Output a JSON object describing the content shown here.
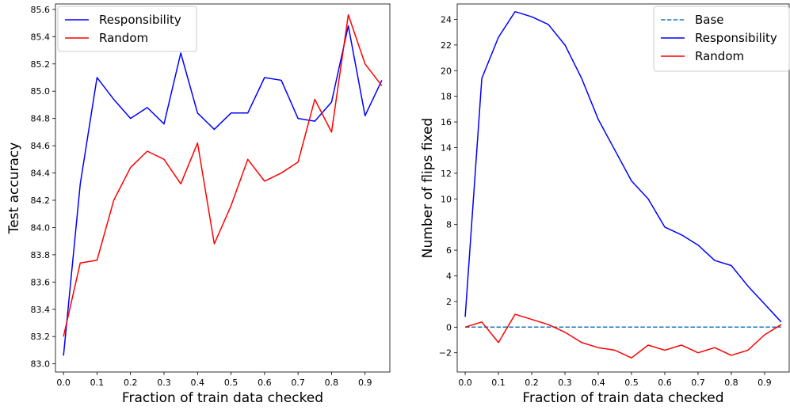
{
  "chart_data": [
    {
      "type": "line",
      "title": "",
      "xlabel": "Fraction of train data checked",
      "ylabel": "Test accuracy",
      "xlim": [
        -0.024,
        0.974
      ],
      "ylim": [
        82.94,
        85.64
      ],
      "xticks": [
        0.0,
        0.1,
        0.2,
        0.3,
        0.4,
        0.5,
        0.6,
        0.7,
        0.8,
        0.9
      ],
      "xtick_labels": [
        "0.0",
        "0.1",
        "0.2",
        "0.3",
        "0.4",
        "0.5",
        "0.6",
        "0.7",
        "0.8",
        "0.9"
      ],
      "yticks": [
        83.0,
        83.2,
        83.4,
        83.6,
        83.8,
        84.0,
        84.2,
        84.4,
        84.6,
        84.8,
        85.0,
        85.2,
        85.4,
        85.6
      ],
      "ytick_labels": [
        "83.0",
        "83.2",
        "83.4",
        "83.6",
        "83.8",
        "84.0",
        "84.2",
        "84.4",
        "84.6",
        "84.8",
        "85.0",
        "85.2",
        "85.4",
        "85.6"
      ],
      "grid": false,
      "legend_position": "top-left",
      "x": [
        0.0,
        0.05,
        0.1,
        0.15,
        0.2,
        0.25,
        0.3,
        0.35,
        0.4,
        0.45,
        0.5,
        0.55,
        0.6,
        0.65,
        0.7,
        0.75,
        0.8,
        0.85,
        0.9,
        0.95
      ],
      "series": [
        {
          "name": "Responsibility",
          "color": "#0000ff",
          "dashed": false,
          "values": [
            83.06,
            84.32,
            85.1,
            84.94,
            84.8,
            84.88,
            84.76,
            85.28,
            84.84,
            84.72,
            84.84,
            84.84,
            85.1,
            85.08,
            84.8,
            84.78,
            84.92,
            85.48,
            84.82,
            85.08
          ]
        },
        {
          "name": "Random",
          "color": "#ff0000",
          "dashed": false,
          "values": [
            83.2,
            83.74,
            83.76,
            84.2,
            84.44,
            84.56,
            84.5,
            84.32,
            84.62,
            83.88,
            84.16,
            84.5,
            84.34,
            84.4,
            84.48,
            84.94,
            84.7,
            85.56,
            85.2,
            85.04
          ]
        }
      ]
    },
    {
      "type": "line",
      "title": "",
      "xlabel": "Fraction of train data checked",
      "ylabel": "Number of flips fixed",
      "xlim": [
        -0.024,
        0.974
      ],
      "ylim": [
        -3.5,
        25.2
      ],
      "xticks": [
        0.0,
        0.1,
        0.2,
        0.3,
        0.4,
        0.5,
        0.6,
        0.7,
        0.8,
        0.9
      ],
      "xtick_labels": [
        "0.0",
        "0.1",
        "0.2",
        "0.3",
        "0.4",
        "0.5",
        "0.6",
        "0.7",
        "0.8",
        "0.9"
      ],
      "yticks": [
        -2,
        0,
        2,
        4,
        6,
        8,
        10,
        12,
        14,
        16,
        18,
        20,
        22,
        24
      ],
      "ytick_labels": [
        "−2",
        "0",
        "2",
        "4",
        "6",
        "8",
        "10",
        "12",
        "14",
        "16",
        "18",
        "20",
        "22",
        "24"
      ],
      "grid": false,
      "legend_position": "top-right",
      "x": [
        0.0,
        0.05,
        0.1,
        0.15,
        0.2,
        0.25,
        0.3,
        0.35,
        0.4,
        0.45,
        0.5,
        0.55,
        0.6,
        0.65,
        0.7,
        0.75,
        0.8,
        0.85,
        0.9,
        0.95
      ],
      "series": [
        {
          "name": "Base",
          "color": "#1f77b4",
          "dashed": true,
          "values": [
            0,
            0,
            0,
            0,
            0,
            0,
            0,
            0,
            0,
            0,
            0,
            0,
            0,
            0,
            0,
            0,
            0,
            0,
            0,
            0
          ]
        },
        {
          "name": "Responsibility",
          "color": "#0000ff",
          "dashed": false,
          "values": [
            0.8,
            19.4,
            22.6,
            24.6,
            24.2,
            23.6,
            22.0,
            19.4,
            16.2,
            13.8,
            11.4,
            10.0,
            7.8,
            7.2,
            6.4,
            5.2,
            4.8,
            3.2,
            1.8,
            0.4
          ]
        },
        {
          "name": "Random",
          "color": "#ff0000",
          "dashed": false,
          "values": [
            0.0,
            0.4,
            -1.2,
            1.0,
            0.6,
            0.2,
            -0.4,
            -1.2,
            -1.6,
            -1.8,
            -2.4,
            -1.4,
            -1.8,
            -1.4,
            -2.0,
            -1.6,
            -2.2,
            -1.8,
            -0.6,
            0.2
          ]
        }
      ]
    }
  ]
}
